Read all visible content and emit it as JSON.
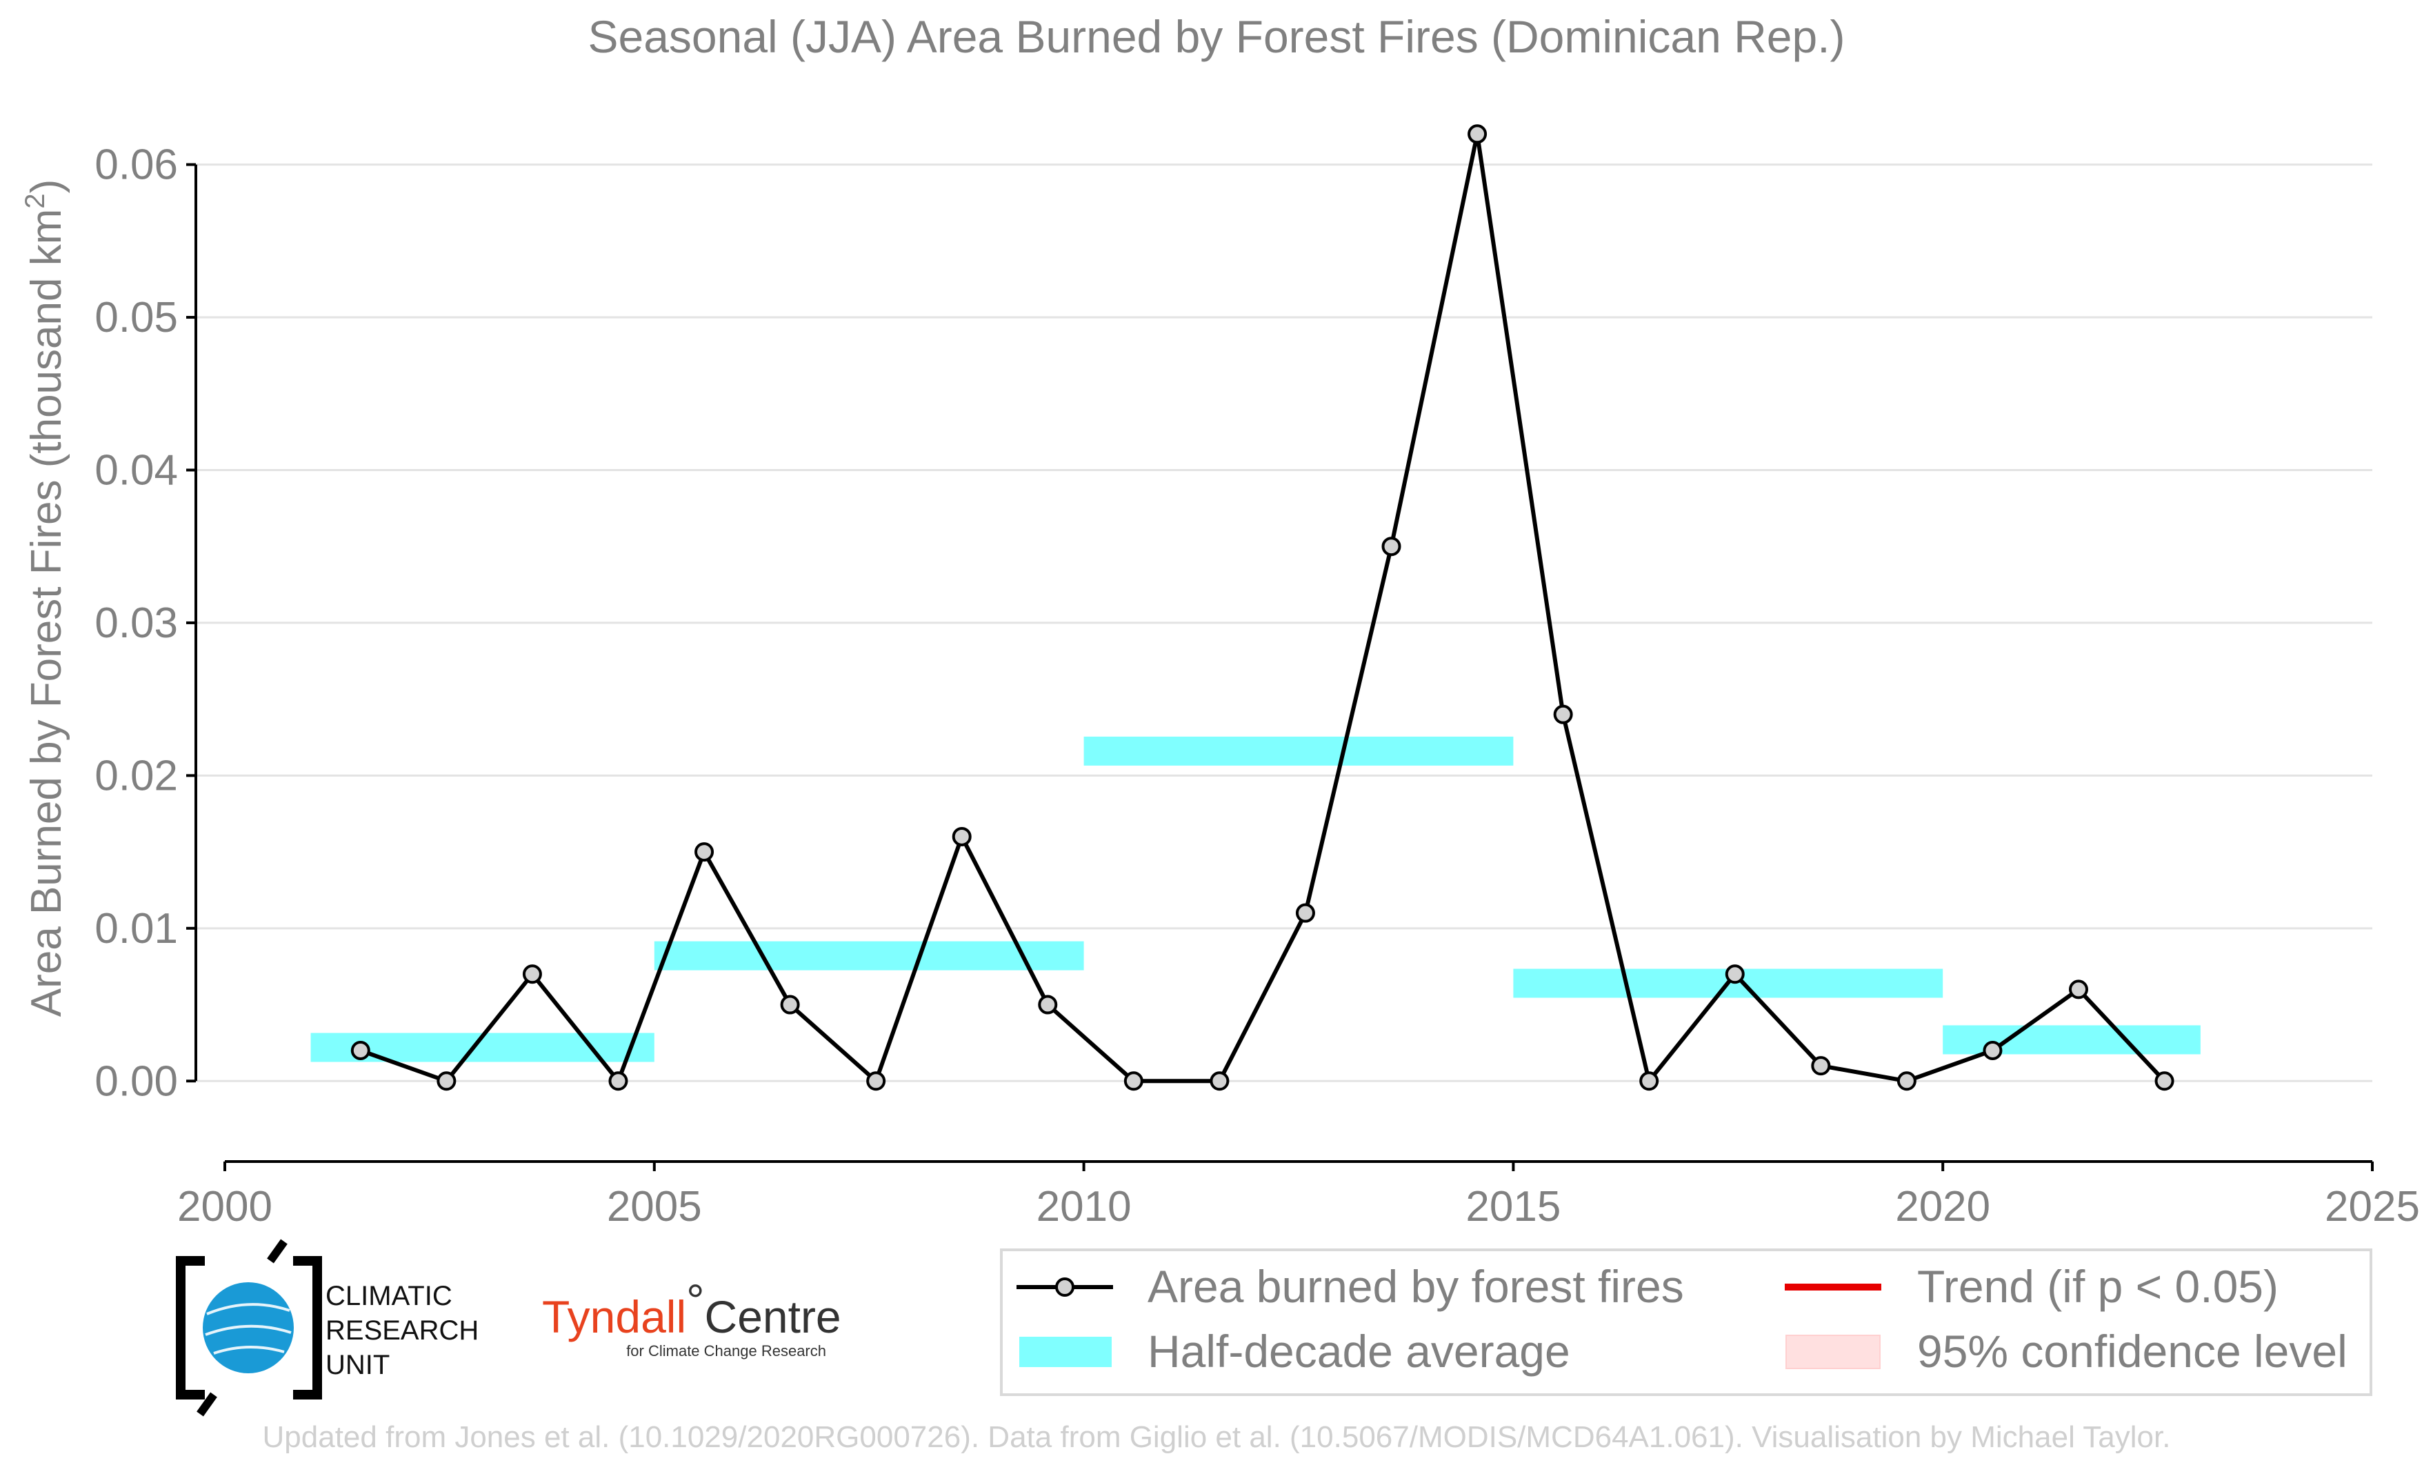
{
  "chart_data": {
    "type": "line",
    "title": "Seasonal (JJA) Area Burned by Forest Fires (Dominican Rep.)",
    "ylabel": "Area Burned by Forest Fires (thousand km",
    "ylabel_superscript": "2",
    "ylabel_suffix": ")",
    "xlabel": "",
    "xlim": [
      2000,
      2025
    ],
    "ylim": [
      -0.005,
      0.064
    ],
    "x_ticks": [
      2000,
      2005,
      2010,
      2015,
      2020,
      2025
    ],
    "x_tick_labels": [
      "2000",
      "2005",
      "2010",
      "2015",
      "2020",
      "2025"
    ],
    "y_ticks": [
      0,
      0.01,
      0.02,
      0.03,
      0.04,
      0.05,
      0.06
    ],
    "y_tick_labels": [
      "0.00",
      "0.01",
      "0.02",
      "0.03",
      "0.04",
      "0.05",
      "0.06"
    ],
    "grid": "horizontal",
    "series": [
      {
        "name": "Area burned by forest fires",
        "color": "#000000",
        "marker_fill": "#d3d3d3",
        "x": [
          2001.58,
          2002.58,
          2003.58,
          2004.58,
          2005.58,
          2006.58,
          2007.58,
          2008.58,
          2009.58,
          2010.58,
          2011.58,
          2012.58,
          2013.58,
          2014.58,
          2015.58,
          2016.58,
          2017.58,
          2018.58,
          2019.58,
          2020.58,
          2021.58,
          2022.58
        ],
        "y": [
          0.002,
          0.0,
          0.007,
          0.0,
          0.015,
          0.005,
          0.0,
          0.016,
          0.005,
          0.0,
          0.0,
          0.011,
          0.035,
          0.062,
          0.024,
          0.0,
          0.007,
          0.001,
          0.0,
          0.002,
          0.006,
          0.0
        ]
      }
    ],
    "half_decade_average": {
      "name": "Half-decade average",
      "color": "#80ffff",
      "segments": [
        {
          "x_start": 2001.0,
          "x_end": 2005.0,
          "value": 0.0022
        },
        {
          "x_start": 2005.0,
          "x_end": 2010.0,
          "value": 0.0082
        },
        {
          "x_start": 2010.0,
          "x_end": 2015.0,
          "value": 0.0216
        },
        {
          "x_start": 2015.0,
          "x_end": 2020.0,
          "value": 0.0064
        },
        {
          "x_start": 2020.0,
          "x_end": 2023.0,
          "value": 0.0027
        }
      ]
    },
    "legend": {
      "position": "bottom-right",
      "entries": [
        {
          "label": "Area burned by forest fires",
          "kind": "line-marker",
          "color": "#000000"
        },
        {
          "label": "Trend (if p < 0.05)",
          "kind": "line",
          "color": "#e60000"
        },
        {
          "label": "Half-decade average",
          "kind": "band",
          "color": "#80ffff"
        },
        {
          "label": "95% confidence level",
          "kind": "band",
          "color": "#ffe0e0"
        }
      ]
    }
  },
  "logos": {
    "cru_lines": [
      "CLIMATIC",
      "RESEARCH",
      "UNIT"
    ],
    "tyndall_name": "Tyndall",
    "tyndall_degree": "°",
    "tyndall_centre": "Centre",
    "tyndall_sub": "for Climate Change Research"
  },
  "footer": "Updated from Jones et al. (10.1029/2020RG000726). Data from Giglio et al. (10.5067/MODIS/MCD64A1.061). Visualisation by Michael Taylor."
}
